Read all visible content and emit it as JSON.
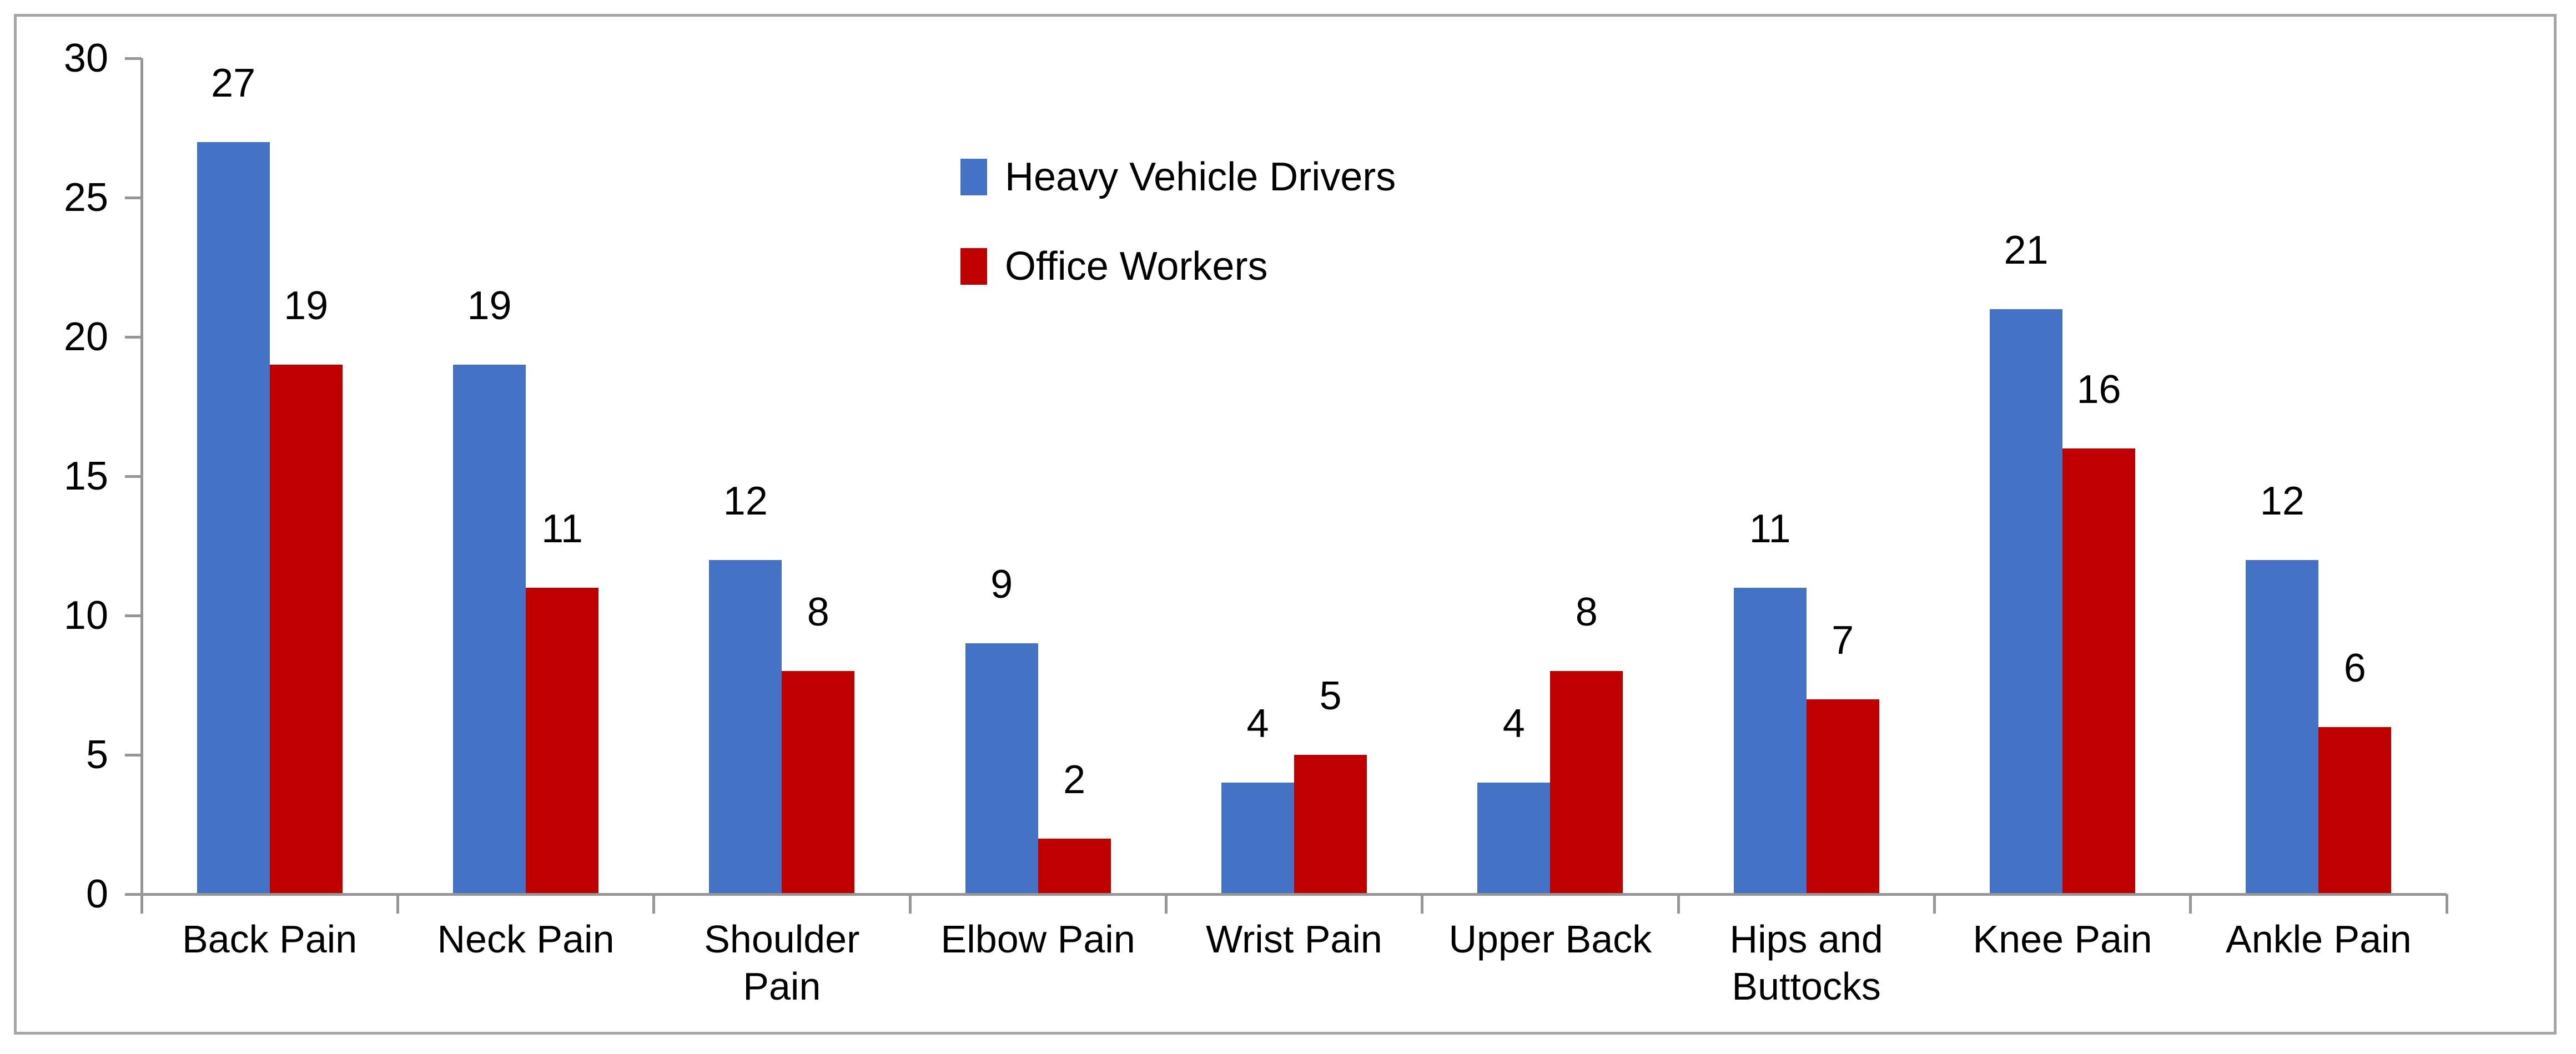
{
  "chart_data": {
    "type": "bar",
    "title": "",
    "xlabel": "",
    "ylabel": "",
    "categories": [
      "Back Pain",
      "Neck Pain",
      "Shoulder Pain",
      "Elbow Pain",
      "Wrist Pain",
      "Upper Back",
      "Hips and Buttocks",
      "Knee Pain",
      "Ankle Pain"
    ],
    "series": [
      {
        "name": "Heavy Vehicle Drivers",
        "color": "#4472C4",
        "values": [
          27,
          19,
          12,
          9,
          4,
          4,
          11,
          21,
          12
        ]
      },
      {
        "name": "Office Workers",
        "color": "#C00000",
        "values": [
          19,
          11,
          8,
          2,
          5,
          8,
          7,
          16,
          6
        ]
      }
    ],
    "ylim": [
      0,
      30
    ],
    "yticks": [
      0,
      5,
      10,
      15,
      20,
      25,
      30
    ],
    "grid": "off",
    "legend_position": "inside-top-center",
    "data_labels": "above-bars"
  },
  "colors": {
    "background": "#FFFFFF",
    "frame_border": "#A6A6A6",
    "axis": "#969696",
    "label_text": "#000000"
  }
}
